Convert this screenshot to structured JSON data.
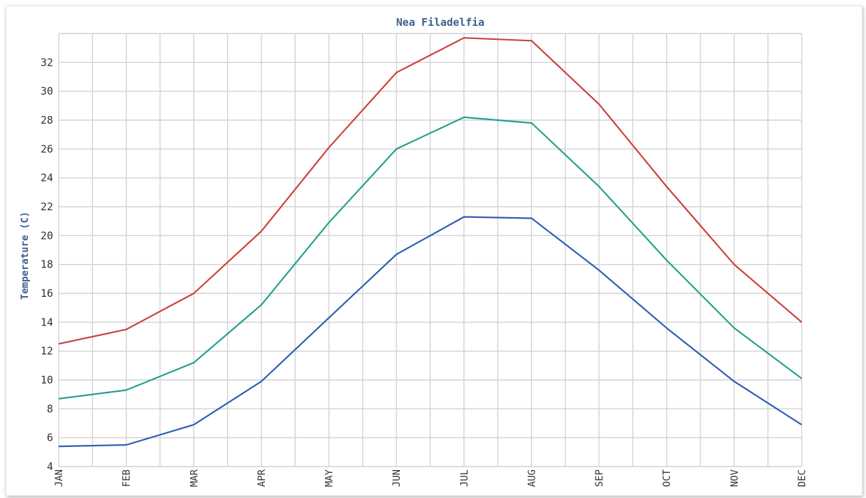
{
  "chart_data": {
    "type": "line",
    "title": "Nea Filadelfia",
    "ylabel": "Temperature (C)",
    "xlabel": "",
    "categories": [
      "JAN",
      "FEB",
      "MAR",
      "APR",
      "MAY",
      "JUN",
      "JUL",
      "AUG",
      "SEP",
      "OCT",
      "NOV",
      "DEC"
    ],
    "ylim": [
      4,
      34
    ],
    "yticks": [
      4,
      6,
      8,
      10,
      12,
      14,
      16,
      18,
      20,
      22,
      24,
      26,
      28,
      30,
      32
    ],
    "grid": true,
    "legend": "none",
    "series": [
      {
        "color": "#c9413d",
        "values": [
          12.5,
          13.5,
          16.0,
          20.3,
          26.1,
          31.3,
          33.7,
          33.5,
          29.1,
          23.4,
          18.0,
          14.0
        ]
      },
      {
        "color": "#26a08f",
        "values": [
          8.7,
          9.3,
          11.2,
          15.2,
          20.9,
          26.0,
          28.2,
          27.8,
          23.4,
          18.3,
          13.6,
          10.1
        ]
      },
      {
        "color": "#2f5db3",
        "values": [
          5.4,
          5.5,
          6.9,
          9.9,
          14.3,
          18.7,
          21.3,
          21.2,
          17.6,
          13.6,
          9.9,
          6.9
        ]
      }
    ]
  }
}
